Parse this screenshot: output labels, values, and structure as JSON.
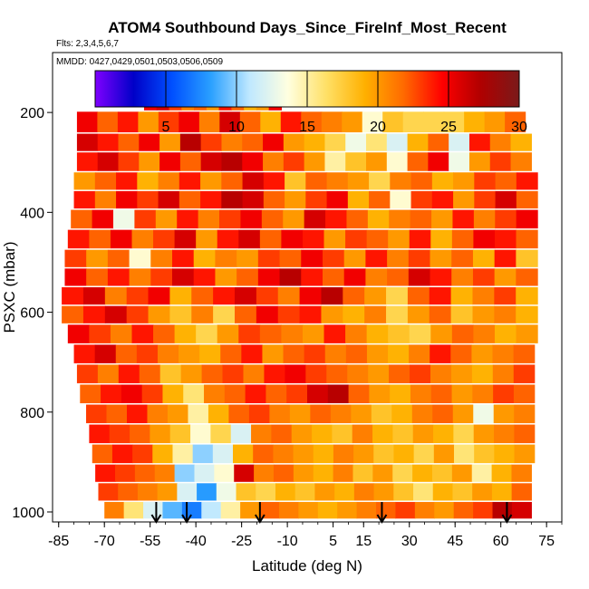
{
  "chart_data": {
    "type": "heatmap",
    "title": "ATOM4 Southbound Days_Since_FireInf_Most_Recent",
    "flights_label": "Flts: 2,3,4,5,6,7",
    "dates_label": "MMDD: 0427,0429,0501,0503,0506,0509",
    "xlabel": "Latitude (deg N)",
    "ylabel": "PSXC (mbar)",
    "xlim": [
      -87,
      80
    ],
    "ylim": [
      1020,
      80
    ],
    "x_ticks": [
      -85,
      -70,
      -55,
      -40,
      -25,
      -10,
      5,
      15,
      30,
      45,
      60,
      75
    ],
    "y_ticks": [
      200,
      400,
      600,
      800,
      1000
    ],
    "colorbar": {
      "min": 0,
      "max": 30,
      "ticks": [
        5,
        10,
        15,
        20,
        25,
        30
      ],
      "colors": [
        "#7f00ff",
        "#0000c8",
        "#0050ff",
        "#2aa0ff",
        "#bfe8ff",
        "#ffffe0",
        "#ffe066",
        "#ffb000",
        "#ff6a00",
        "#ff0000",
        "#b00000",
        "#7a1a1a"
      ]
    },
    "arrows_lat": [
      -53,
      -43,
      -19,
      21,
      62
    ],
    "levels": [
      {
        "p": 172,
        "lat": [
          -57,
          -12
        ],
        "values": [
          25,
          26,
          23,
          21,
          22,
          20,
          24,
          22,
          19,
          20,
          25
        ]
      },
      {
        "p": 225,
        "lat": [
          -79,
          68
        ],
        "values": [
          25,
          22,
          24,
          20,
          23,
          25,
          21,
          26,
          22,
          19,
          24,
          22,
          21,
          20,
          14,
          18,
          17,
          17,
          17,
          19,
          20,
          22
        ]
      },
      {
        "p": 260,
        "lat": [
          -79,
          70
        ],
        "values": [
          26,
          24,
          22,
          25,
          20,
          27,
          23,
          21,
          22,
          25,
          20,
          19,
          17,
          13,
          16,
          12,
          19,
          22,
          12,
          24,
          21,
          19
        ]
      },
      {
        "p": 300,
        "lat": [
          -79,
          70
        ],
        "values": [
          24,
          26,
          23,
          20,
          25,
          22,
          26,
          27,
          25,
          21,
          23,
          20,
          15,
          18,
          20,
          14,
          22,
          25,
          13,
          20,
          23,
          21
        ]
      },
      {
        "p": 340,
        "lat": [
          -80,
          72
        ],
        "values": [
          20,
          22,
          24,
          19,
          21,
          24,
          20,
          22,
          26,
          24,
          18,
          22,
          21,
          20,
          17,
          21,
          22,
          19,
          20,
          23,
          22,
          24
        ]
      },
      {
        "p": 375,
        "lat": [
          -80,
          72
        ],
        "values": [
          24,
          21,
          25,
          23,
          26,
          22,
          24,
          27,
          26,
          22,
          20,
          23,
          25,
          19,
          22,
          14,
          23,
          24,
          20,
          23,
          26,
          22
        ]
      },
      {
        "p": 415,
        "lat": [
          -81,
          72
        ],
        "values": [
          22,
          25,
          13,
          23,
          20,
          24,
          21,
          23,
          25,
          22,
          20,
          26,
          24,
          22,
          19,
          21,
          22,
          20,
          24,
          21,
          23,
          25
        ]
      },
      {
        "p": 455,
        "lat": [
          -82,
          72
        ],
        "values": [
          24,
          22,
          25,
          21,
          23,
          26,
          20,
          24,
          26,
          22,
          25,
          24,
          20,
          23,
          22,
          20,
          24,
          19,
          22,
          25,
          24,
          22
        ]
      },
      {
        "p": 495,
        "lat": [
          -83,
          72
        ],
        "values": [
          23,
          20,
          22,
          14,
          21,
          24,
          19,
          21,
          20,
          23,
          22,
          25,
          23,
          20,
          24,
          21,
          23,
          20,
          22,
          19,
          24,
          18
        ]
      },
      {
        "p": 530,
        "lat": [
          -83,
          72
        ],
        "values": [
          25,
          22,
          24,
          21,
          23,
          26,
          24,
          20,
          22,
          25,
          27,
          24,
          22,
          25,
          21,
          22,
          26,
          24,
          21,
          23,
          20,
          22
        ]
      },
      {
        "p": 570,
        "lat": [
          -84,
          72
        ],
        "values": [
          24,
          26,
          21,
          23,
          25,
          19,
          22,
          24,
          26,
          23,
          21,
          25,
          27,
          22,
          20,
          17,
          22,
          24,
          19,
          21,
          23,
          19
        ]
      },
      {
        "p": 605,
        "lat": [
          -84,
          72
        ],
        "values": [
          22,
          24,
          26,
          23,
          20,
          18,
          21,
          17,
          22,
          25,
          23,
          24,
          20,
          19,
          21,
          17,
          20,
          22,
          18,
          20,
          21,
          19
        ]
      },
      {
        "p": 645,
        "lat": [
          -82,
          72
        ],
        "values": [
          25,
          23,
          21,
          24,
          22,
          19,
          17,
          20,
          23,
          22,
          21,
          20,
          24,
          21,
          19,
          18,
          17,
          20,
          22,
          21,
          19,
          20
        ]
      },
      {
        "p": 685,
        "lat": [
          -80,
          71
        ],
        "values": [
          24,
          26,
          22,
          23,
          21,
          20,
          19,
          22,
          24,
          20,
          22,
          23,
          21,
          22,
          20,
          19,
          21,
          24,
          22,
          20,
          21,
          22
        ]
      },
      {
        "p": 725,
        "lat": [
          -79,
          71
        ],
        "values": [
          23,
          21,
          24,
          22,
          18,
          20,
          22,
          23,
          21,
          24,
          25,
          23,
          22,
          21,
          20,
          22,
          23,
          21,
          20,
          19,
          21,
          23
        ]
      },
      {
        "p": 765,
        "lat": [
          -78,
          71
        ],
        "values": [
          22,
          24,
          25,
          23,
          19,
          16,
          21,
          22,
          24,
          22,
          23,
          26,
          27,
          22,
          20,
          19,
          21,
          22,
          20,
          21,
          23,
          22
        ]
      },
      {
        "p": 805,
        "lat": [
          -76,
          71
        ],
        "values": [
          23,
          22,
          24,
          21,
          20,
          15,
          19,
          22,
          23,
          21,
          20,
          22,
          21,
          20,
          18,
          19,
          21,
          22,
          20,
          13,
          20,
          21
        ]
      },
      {
        "p": 845,
        "lat": [
          -75,
          71
        ],
        "values": [
          24,
          23,
          22,
          20,
          18,
          14,
          17,
          12,
          21,
          22,
          20,
          19,
          18,
          21,
          19,
          18,
          20,
          19,
          17,
          20,
          21,
          22
        ]
      },
      {
        "p": 885,
        "lat": [
          -74,
          71
        ],
        "values": [
          22,
          24,
          23,
          19,
          15,
          10,
          12,
          19,
          22,
          21,
          20,
          19,
          21,
          20,
          18,
          19,
          17,
          20,
          16,
          18,
          19,
          20
        ]
      },
      {
        "p": 925,
        "lat": [
          -73,
          70
        ],
        "values": [
          24,
          23,
          22,
          21,
          10,
          12,
          14,
          26,
          21,
          22,
          20,
          19,
          21,
          18,
          20,
          17,
          19,
          18,
          20,
          15,
          19,
          21
        ]
      },
      {
        "p": 960,
        "lat": [
          -72,
          70
        ],
        "values": [
          23,
          22,
          21,
          20,
          12,
          8,
          13,
          18,
          17,
          19,
          18,
          20,
          19,
          21,
          20,
          18,
          16,
          19,
          18,
          20,
          19,
          22
        ]
      },
      {
        "p": 1000,
        "lat": [
          -70,
          70
        ],
        "values": [
          21,
          16,
          12,
          9,
          7,
          11,
          15,
          20,
          22,
          21,
          20,
          19,
          20,
          21,
          22,
          23,
          21,
          20,
          22,
          23,
          27,
          26
        ]
      }
    ]
  }
}
